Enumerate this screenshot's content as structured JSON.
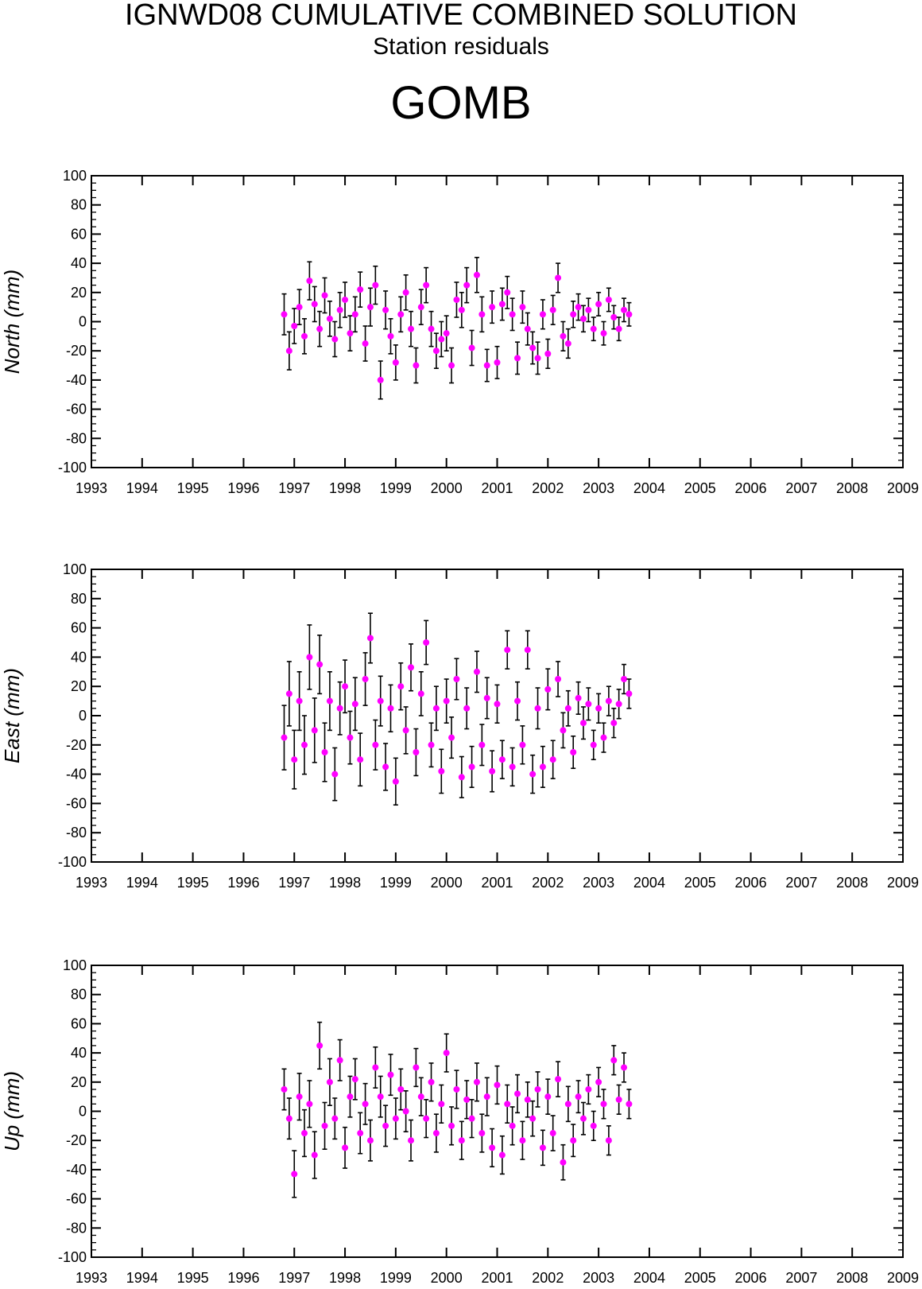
{
  "header": {
    "title": "IGNWD08 CUMULATIVE COMBINED SOLUTION",
    "subtitle": "Station residuals",
    "station": "GOMB"
  },
  "colors": {
    "marker": "#ff00ff",
    "errorbar": "#000000",
    "axis": "#000000"
  },
  "chart_data": [
    {
      "type": "scatter",
      "ylabel": "North (mm)",
      "xlim": [
        1993,
        2009
      ],
      "ylim": [
        -100,
        100
      ],
      "x_ticks": [
        "1993",
        "1994",
        "1995",
        "1996",
        "1997",
        "1998",
        "1999",
        "2000",
        "2001",
        "2002",
        "2003",
        "2004",
        "2005",
        "2006",
        "2007",
        "2008",
        "2009"
      ],
      "y_ticks": [
        "-100",
        "-80",
        "-60",
        "-40",
        "-20",
        "0",
        "20",
        "40",
        "60",
        "80",
        "100"
      ],
      "grid": false,
      "error_bars": true,
      "x": [
        1996.8,
        1996.9,
        1997.0,
        1997.1,
        1997.2,
        1997.3,
        1997.4,
        1997.5,
        1997.6,
        1997.7,
        1997.8,
        1997.9,
        1998.0,
        1998.1,
        1998.2,
        1998.3,
        1998.4,
        1998.5,
        1998.6,
        1998.7,
        1998.8,
        1998.9,
        1999.0,
        1999.1,
        1999.2,
        1999.3,
        1999.4,
        1999.5,
        1999.6,
        1999.7,
        1999.8,
        1999.9,
        2000.0,
        2000.1,
        2000.2,
        2000.3,
        2000.4,
        2000.5,
        2000.6,
        2000.7,
        2000.8,
        2000.9,
        2001.0,
        2001.1,
        2001.2,
        2001.3,
        2001.4,
        2001.5,
        2001.6,
        2001.7,
        2001.8,
        2001.9,
        2002.0,
        2002.1,
        2002.2,
        2002.3,
        2002.4,
        2002.5,
        2002.6,
        2002.7,
        2002.8,
        2002.9,
        2003.0,
        2003.1,
        2003.2,
        2003.3,
        2003.4,
        2003.5,
        2003.6
      ],
      "y": [
        5,
        -20,
        -3,
        10,
        -10,
        28,
        12,
        -5,
        18,
        2,
        -12,
        8,
        15,
        -8,
        5,
        22,
        -15,
        10,
        25,
        -40,
        8,
        -10,
        -28,
        5,
        20,
        -5,
        -30,
        10,
        25,
        -5,
        -20,
        -12,
        -8,
        -30,
        15,
        8,
        25,
        -18,
        32,
        5,
        -30,
        10,
        -28,
        12,
        20,
        5,
        -25,
        10,
        -5,
        -18,
        -25,
        5,
        -22,
        8,
        30,
        -10,
        -15,
        5,
        10,
        2,
        8,
        -5,
        12,
        -8,
        15,
        3,
        -5,
        8,
        5
      ],
      "err": [
        14,
        13,
        12,
        12,
        12,
        13,
        12,
        12,
        12,
        12,
        12,
        12,
        12,
        12,
        12,
        12,
        12,
        13,
        13,
        13,
        13,
        12,
        12,
        12,
        12,
        12,
        12,
        12,
        12,
        12,
        12,
        12,
        12,
        12,
        12,
        12,
        12,
        12,
        12,
        12,
        11,
        11,
        11,
        11,
        11,
        11,
        11,
        11,
        11,
        11,
        11,
        10,
        10,
        10,
        10,
        10,
        10,
        9,
        9,
        9,
        8,
        8,
        8,
        8,
        8,
        8,
        8,
        8,
        8
      ]
    },
    {
      "type": "scatter",
      "ylabel": "East (mm)",
      "xlim": [
        1993,
        2009
      ],
      "ylim": [
        -100,
        100
      ],
      "x_ticks": [
        "1993",
        "1994",
        "1995",
        "1996",
        "1997",
        "1998",
        "1999",
        "2000",
        "2001",
        "2002",
        "2003",
        "2004",
        "2005",
        "2006",
        "2007",
        "2008",
        "2009"
      ],
      "y_ticks": [
        "-100",
        "-80",
        "-60",
        "-40",
        "-20",
        "0",
        "20",
        "40",
        "60",
        "80",
        "100"
      ],
      "grid": false,
      "error_bars": true,
      "x": [
        1996.8,
        1996.9,
        1997.0,
        1997.1,
        1997.2,
        1997.3,
        1997.4,
        1997.5,
        1997.6,
        1997.7,
        1997.8,
        1997.9,
        1998.0,
        1998.1,
        1998.2,
        1998.3,
        1998.4,
        1998.5,
        1998.6,
        1998.7,
        1998.8,
        1998.9,
        1999.0,
        1999.1,
        1999.2,
        1999.3,
        1999.4,
        1999.5,
        1999.6,
        1999.7,
        1999.8,
        1999.9,
        2000.0,
        2000.1,
        2000.2,
        2000.3,
        2000.4,
        2000.5,
        2000.6,
        2000.7,
        2000.8,
        2000.9,
        2001.0,
        2001.1,
        2001.2,
        2001.3,
        2001.4,
        2001.5,
        2001.6,
        2001.7,
        2001.8,
        2001.9,
        2002.0,
        2002.1,
        2002.2,
        2002.3,
        2002.4,
        2002.5,
        2002.6,
        2002.7,
        2002.8,
        2002.9,
        2003.0,
        2003.1,
        2003.2,
        2003.3,
        2003.4,
        2003.5,
        2003.6
      ],
      "y": [
        -15,
        15,
        -30,
        10,
        -20,
        40,
        -10,
        35,
        -25,
        10,
        -40,
        5,
        20,
        -15,
        8,
        -30,
        25,
        53,
        -20,
        10,
        -35,
        5,
        -45,
        20,
        -10,
        33,
        -25,
        15,
        50,
        -20,
        5,
        -38,
        10,
        -15,
        25,
        -42,
        5,
        -35,
        30,
        -20,
        12,
        -38,
        8,
        -30,
        45,
        -35,
        10,
        -20,
        45,
        -40,
        5,
        -35,
        18,
        -30,
        25,
        -10,
        5,
        -25,
        12,
        -5,
        8,
        -20,
        5,
        -15,
        10,
        -5,
        8,
        25,
        15
      ],
      "err": [
        22,
        22,
        20,
        20,
        20,
        22,
        22,
        20,
        20,
        20,
        18,
        18,
        18,
        18,
        18,
        18,
        18,
        17,
        17,
        17,
        16,
        16,
        16,
        16,
        16,
        16,
        16,
        15,
        15,
        15,
        15,
        15,
        15,
        14,
        14,
        14,
        14,
        14,
        14,
        14,
        14,
        14,
        13,
        13,
        13,
        13,
        13,
        13,
        13,
        13,
        14,
        14,
        14,
        13,
        12,
        12,
        12,
        11,
        11,
        11,
        11,
        10,
        10,
        10,
        10,
        10,
        10,
        10,
        10
      ]
    },
    {
      "type": "scatter",
      "ylabel": "Up (mm)",
      "xlim": [
        1993,
        2009
      ],
      "ylim": [
        -100,
        100
      ],
      "x_ticks": [
        "1993",
        "1994",
        "1995",
        "1996",
        "1997",
        "1998",
        "1999",
        "2000",
        "2001",
        "2002",
        "2003",
        "2004",
        "2005",
        "2006",
        "2007",
        "2008",
        "2009"
      ],
      "y_ticks": [
        "-100",
        "-80",
        "-60",
        "-40",
        "-20",
        "0",
        "20",
        "40",
        "60",
        "80",
        "100"
      ],
      "grid": false,
      "error_bars": true,
      "x": [
        1996.8,
        1996.9,
        1997.0,
        1997.1,
        1997.2,
        1997.3,
        1997.4,
        1997.5,
        1997.6,
        1997.7,
        1997.8,
        1997.9,
        1998.0,
        1998.1,
        1998.2,
        1998.3,
        1998.4,
        1998.5,
        1998.6,
        1998.7,
        1998.8,
        1998.9,
        1999.0,
        1999.1,
        1999.2,
        1999.3,
        1999.4,
        1999.5,
        1999.6,
        1999.7,
        1999.8,
        1999.9,
        2000.0,
        2000.1,
        2000.2,
        2000.3,
        2000.4,
        2000.5,
        2000.6,
        2000.7,
        2000.8,
        2000.9,
        2001.0,
        2001.1,
        2001.2,
        2001.3,
        2001.4,
        2001.5,
        2001.6,
        2001.7,
        2001.8,
        2001.9,
        2002.0,
        2002.1,
        2002.2,
        2002.3,
        2002.4,
        2002.5,
        2002.6,
        2002.7,
        2002.8,
        2002.9,
        2003.0,
        2003.1,
        2003.2,
        2003.3,
        2003.4,
        2003.5,
        2003.6
      ],
      "y": [
        15,
        -5,
        -43,
        10,
        -15,
        5,
        -30,
        45,
        -10,
        20,
        -5,
        35,
        -25,
        10,
        22,
        -15,
        5,
        -20,
        30,
        10,
        -10,
        25,
        -5,
        15,
        0,
        -20,
        30,
        10,
        -5,
        20,
        -15,
        5,
        40,
        -10,
        15,
        -20,
        8,
        -5,
        20,
        -15,
        10,
        -25,
        18,
        -30,
        5,
        -10,
        12,
        -20,
        8,
        -5,
        15,
        -25,
        10,
        -15,
        22,
        -35,
        5,
        -20,
        10,
        -5,
        15,
        -10,
        20,
        5,
        -20,
        35,
        8,
        30,
        5
      ],
      "err": [
        14,
        14,
        16,
        16,
        16,
        16,
        16,
        16,
        16,
        16,
        14,
        14,
        14,
        14,
        14,
        14,
        14,
        14,
        14,
        14,
        14,
        14,
        14,
        14,
        14,
        14,
        13,
        13,
        13,
        13,
        13,
        13,
        13,
        13,
        13,
        13,
        13,
        13,
        13,
        13,
        13,
        13,
        13,
        13,
        13,
        13,
        13,
        13,
        12,
        12,
        12,
        12,
        12,
        12,
        12,
        12,
        12,
        11,
        11,
        11,
        10,
        10,
        10,
        10,
        10,
        10,
        10,
        10,
        10
      ]
    }
  ]
}
